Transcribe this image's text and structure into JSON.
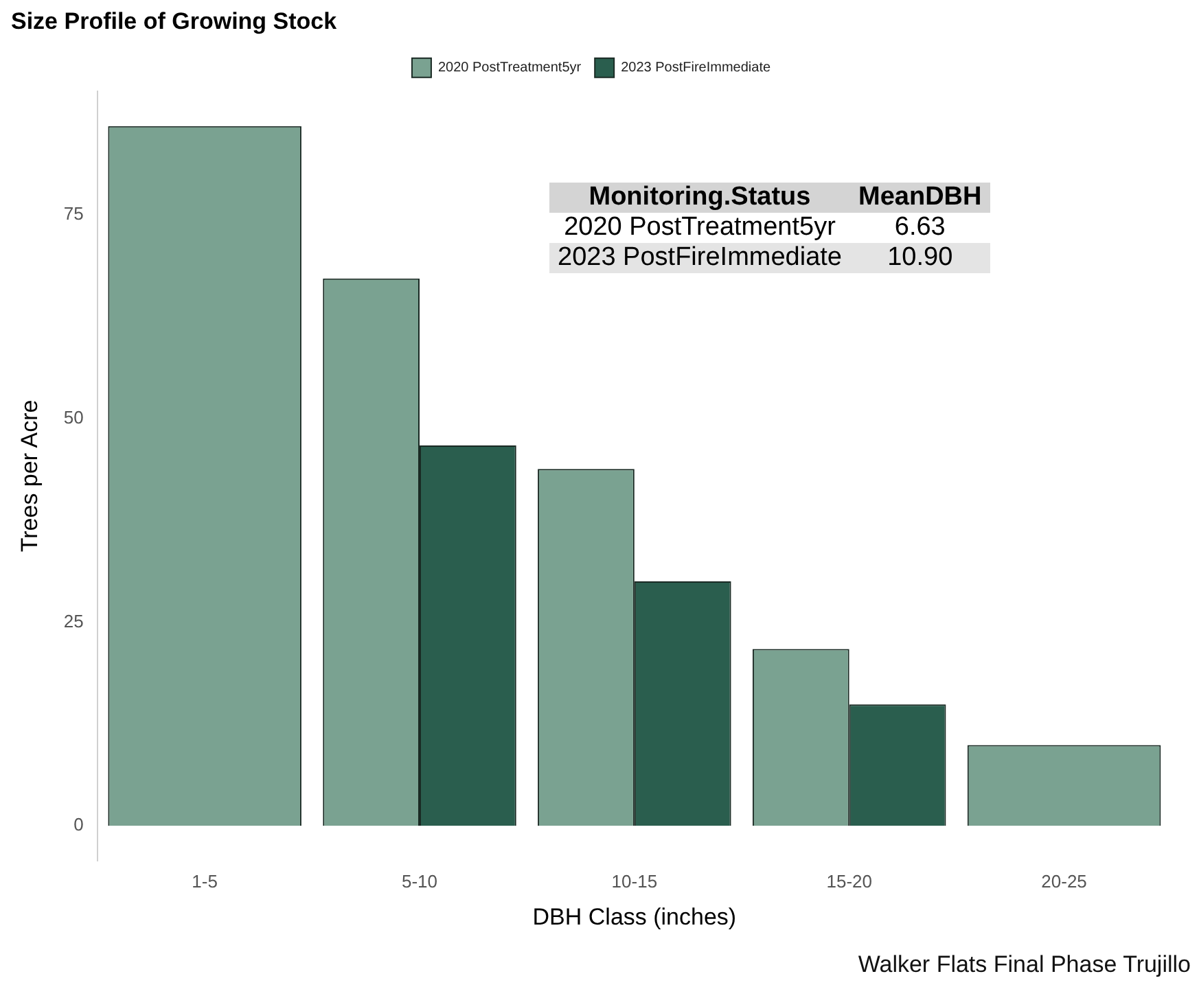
{
  "chart_data": {
    "type": "bar",
    "title": "Size Profile of Growing Stock",
    "xlabel": "DBH Class (inches)",
    "ylabel": "Trees per Acre",
    "categories": [
      "1-5",
      "5-10",
      "10-15",
      "15-20",
      "20-25"
    ],
    "series": [
      {
        "name": "2020 PostTreatment5yr",
        "color": "#7aa291",
        "values": [
          85.9,
          67.2,
          43.8,
          21.7,
          9.9
        ]
      },
      {
        "name": "2023 PostFireImmediate",
        "color": "#2a5e4e",
        "values": [
          null,
          46.7,
          30.0,
          14.9,
          null
        ]
      }
    ],
    "ylim": [
      -4.3,
      90.2
    ],
    "yticks": [
      0,
      25,
      50,
      75
    ],
    "grid": false,
    "legend": "top",
    "annotations": [
      "Monitoring.Status",
      "MeanDBH",
      "2020 PostTreatment5yr",
      "6.63",
      "2023 PostFireImmediate",
      "10.90",
      "Walker Flats Final Phase Trujillo"
    ]
  }
}
